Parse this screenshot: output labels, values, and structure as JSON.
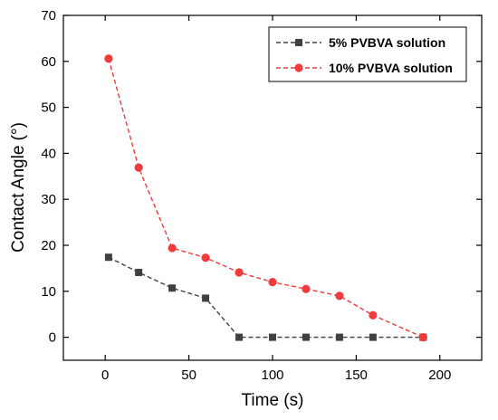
{
  "chart_data": {
    "type": "line",
    "title": "",
    "xlabel": "Time (s)",
    "ylabel": "Contact Angle (°)",
    "xlim": [
      -25,
      225
    ],
    "ylim": [
      -5,
      70
    ],
    "xticks": [
      0,
      50,
      100,
      150,
      200
    ],
    "yticks": [
      0,
      10,
      20,
      30,
      40,
      50,
      60,
      70
    ],
    "grid": false,
    "legend_position": "top-right",
    "series": [
      {
        "name": "5% PVBVA solution",
        "color": "#404040",
        "marker": "square",
        "line_style": "dashed",
        "x": [
          2,
          20,
          40,
          60,
          80,
          100,
          120,
          140,
          160,
          190
        ],
        "y": [
          17.4,
          14.1,
          10.7,
          8.5,
          0,
          0,
          0,
          0,
          0,
          0
        ]
      },
      {
        "name": "10% PVBVA solution",
        "color": "#ef3b3b",
        "marker": "circle",
        "line_style": "dashed",
        "x": [
          2,
          20,
          40,
          60,
          80,
          100,
          120,
          140,
          160,
          190
        ],
        "y": [
          60.6,
          36.9,
          19.4,
          17.3,
          14.1,
          12.0,
          10.5,
          9.0,
          4.8,
          0
        ]
      }
    ]
  }
}
